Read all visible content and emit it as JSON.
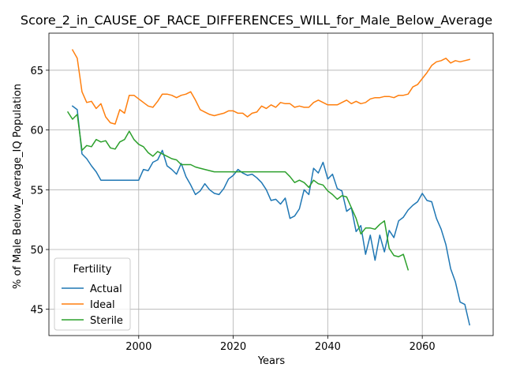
{
  "chart_data": {
    "type": "line",
    "title": "Score_2_in_CAUSE_OF_RACE_DIFFERENCES_WILL_for_Male_Below_Average",
    "xlabel": "Years",
    "ylabel": "% of Male Below_Average_IQ Population",
    "xlim": [
      1981,
      2075
    ],
    "ylim": [
      42.8,
      68.1
    ],
    "xticks": [
      2000,
      2020,
      2040,
      2060
    ],
    "yticks": [
      45,
      50,
      55,
      60,
      65
    ],
    "grid": true,
    "legend": {
      "title": "Fertility",
      "placement": "lower-left"
    },
    "series": [
      {
        "name": "Actual",
        "color": "#1f77b4",
        "x": [
          1986,
          1987,
          1988,
          1989,
          1990,
          1991,
          1992,
          1993,
          1994,
          1995,
          1996,
          1997,
          1998,
          1999,
          2000,
          2001,
          2002,
          2003,
          2004,
          2005,
          2006,
          2007,
          2008,
          2009,
          2010,
          2011,
          2012,
          2013,
          2014,
          2015,
          2016,
          2017,
          2018,
          2019,
          2020,
          2021,
          2022,
          2023,
          2024,
          2025,
          2026,
          2027,
          2028,
          2029,
          2030,
          2031,
          2032,
          2033,
          2034,
          2035,
          2036,
          2037,
          2038,
          2039,
          2040,
          2041,
          2042,
          2043,
          2044,
          2045,
          2046,
          2047,
          2048,
          2049,
          2050,
          2051,
          2052,
          2053,
          2054,
          2055,
          2056,
          2057,
          2058,
          2059,
          2060,
          2061,
          2062,
          2063,
          2064,
          2065,
          2066,
          2067,
          2068,
          2069,
          2070
        ],
        "values": [
          62.0,
          61.7,
          58.0,
          57.6,
          57.0,
          56.5,
          55.8,
          55.8,
          55.8,
          55.8,
          55.8,
          55.8,
          55.8,
          55.8,
          55.8,
          56.7,
          56.6,
          57.3,
          57.5,
          58.3,
          57.0,
          56.7,
          56.3,
          57.2,
          56.1,
          55.4,
          54.6,
          54.9,
          55.5,
          55.0,
          54.7,
          54.6,
          55.1,
          55.9,
          56.2,
          56.7,
          56.4,
          56.2,
          56.3,
          56.0,
          55.6,
          55.0,
          54.1,
          54.2,
          53.8,
          54.3,
          52.6,
          52.8,
          53.4,
          55.0,
          54.6,
          56.8,
          56.4,
          57.3,
          55.9,
          56.3,
          55.1,
          54.9,
          53.2,
          53.5,
          51.5,
          52.0,
          49.6,
          51.2,
          49.1,
          51.2,
          49.8,
          51.6,
          51.0,
          52.4,
          52.7,
          53.3,
          53.7,
          54.0,
          54.7,
          54.1,
          54.0,
          52.6,
          51.7,
          50.4,
          48.4,
          47.3,
          45.6,
          45.4,
          43.7
        ]
      },
      {
        "name": "Ideal",
        "color": "#ff7f0e",
        "x": [
          1986,
          1987,
          1988,
          1989,
          1990,
          1991,
          1992,
          1993,
          1994,
          1995,
          1996,
          1997,
          1998,
          1999,
          2000,
          2001,
          2002,
          2003,
          2004,
          2005,
          2006,
          2007,
          2008,
          2009,
          2010,
          2011,
          2012,
          2013,
          2014,
          2015,
          2016,
          2017,
          2018,
          2019,
          2020,
          2021,
          2022,
          2023,
          2024,
          2025,
          2026,
          2027,
          2028,
          2029,
          2030,
          2031,
          2032,
          2033,
          2034,
          2035,
          2036,
          2037,
          2038,
          2039,
          2040,
          2041,
          2042,
          2043,
          2044,
          2045,
          2046,
          2047,
          2048,
          2049,
          2050,
          2051,
          2052,
          2053,
          2054,
          2055,
          2056,
          2057,
          2058,
          2059,
          2060,
          2061,
          2062,
          2063,
          2064,
          2065,
          2066,
          2067,
          2068,
          2069,
          2070
        ],
        "values": [
          66.7,
          66.0,
          63.2,
          62.3,
          62.4,
          61.8,
          62.2,
          61.1,
          60.6,
          60.5,
          61.7,
          61.4,
          62.9,
          62.9,
          62.6,
          62.3,
          62.0,
          61.9,
          62.4,
          63.0,
          63.0,
          62.9,
          62.7,
          62.9,
          63.0,
          63.2,
          62.5,
          61.7,
          61.5,
          61.3,
          61.2,
          61.3,
          61.4,
          61.6,
          61.6,
          61.4,
          61.4,
          61.1,
          61.4,
          61.5,
          62.0,
          61.8,
          62.1,
          61.9,
          62.3,
          62.2,
          62.2,
          61.9,
          62.0,
          61.9,
          61.9,
          62.3,
          62.5,
          62.3,
          62.1,
          62.1,
          62.1,
          62.3,
          62.5,
          62.2,
          62.4,
          62.2,
          62.3,
          62.6,
          62.7,
          62.7,
          62.8,
          62.8,
          62.7,
          62.9,
          62.9,
          63.0,
          63.6,
          63.8,
          64.3,
          64.8,
          65.4,
          65.7,
          65.8,
          66.0,
          65.6,
          65.8,
          65.7,
          65.8,
          65.9
        ]
      },
      {
        "name": "Sterile",
        "color": "#2ca02c",
        "x": [
          1985,
          1986,
          1987,
          1988,
          1989,
          1990,
          1991,
          1992,
          1993,
          1994,
          1995,
          1996,
          1997,
          1998,
          1999,
          2000,
          2001,
          2002,
          2003,
          2004,
          2005,
          2006,
          2007,
          2008,
          2009,
          2010,
          2011,
          2012,
          2013,
          2014,
          2015,
          2016,
          2017,
          2018,
          2019,
          2020,
          2021,
          2022,
          2023,
          2024,
          2025,
          2026,
          2027,
          2028,
          2029,
          2030,
          2031,
          2032,
          2033,
          2034,
          2035,
          2036,
          2037,
          2038,
          2039,
          2040,
          2041,
          2042,
          2043,
          2044,
          2045,
          2046,
          2047,
          2048,
          2049,
          2050,
          2051,
          2052,
          2053,
          2054,
          2055,
          2056,
          2057
        ],
        "values": [
          61.5,
          60.9,
          61.3,
          58.3,
          58.7,
          58.6,
          59.2,
          59.0,
          59.1,
          58.5,
          58.4,
          59.0,
          59.2,
          59.9,
          59.2,
          58.8,
          58.6,
          58.1,
          57.8,
          58.2,
          58.0,
          57.8,
          57.6,
          57.5,
          57.1,
          57.1,
          57.1,
          56.9,
          56.8,
          56.7,
          56.6,
          56.5,
          56.5,
          56.5,
          56.5,
          56.5,
          56.5,
          56.5,
          56.5,
          56.5,
          56.5,
          56.5,
          56.5,
          56.5,
          56.5,
          56.5,
          56.5,
          56.1,
          55.6,
          55.8,
          55.6,
          55.2,
          55.8,
          55.5,
          55.4,
          54.9,
          54.6,
          54.2,
          54.5,
          54.4,
          53.5,
          52.6,
          51.3,
          51.8,
          51.8,
          51.7,
          52.1,
          52.4,
          50.1,
          49.5,
          49.4,
          49.6,
          48.3
        ]
      }
    ]
  }
}
